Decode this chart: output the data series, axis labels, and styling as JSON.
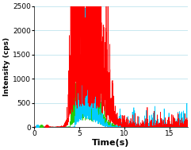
{
  "title": "",
  "xlabel": "Time(s)",
  "ylabel": "Intensity (cps)",
  "xlim": [
    0,
    17
  ],
  "ylim": [
    0,
    2500
  ],
  "yticks": [
    0,
    500,
    1000,
    1500,
    2000,
    2500
  ],
  "xticks": [
    0,
    5,
    10,
    15
  ],
  "background_color": "#ffffff",
  "grid_color": "#c8e8f0",
  "colors": {
    "red": "#ff0000",
    "green": "#22cc00",
    "cyan": "#00ccff"
  },
  "seed": 7
}
